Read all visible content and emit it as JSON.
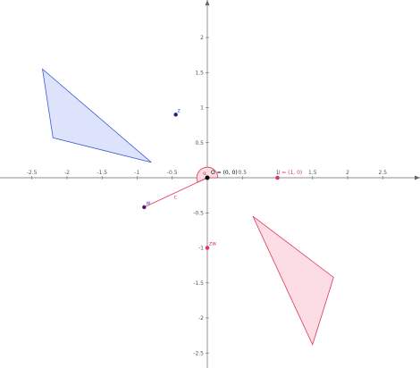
{
  "geometry_view": {
    "x_ticks": [
      "-2.5",
      "-2",
      "-1.5",
      "-1",
      "-0.5",
      "0",
      "0.5",
      "1",
      "1.5",
      "2",
      "2.5"
    ],
    "y_ticks": [
      "2",
      "1.5",
      "1",
      "0.5",
      "-0.5",
      "-1",
      "-1.5",
      "-2",
      "-2.5"
    ],
    "origin_label": "O = (0, 0)",
    "angle_label": "α",
    "point_I_label": "I = (1, 0)",
    "point_z_label": "z",
    "point_w_label": "w",
    "point_zw_label": "zw",
    "segment_label": "c",
    "colors": {
      "blue": "#3b5bd6",
      "blue_fill": "#dde3fb",
      "red": "#e0355f",
      "red_fill": "#fcdde4",
      "axis": "#666666",
      "origin": "#000000",
      "point_dark": "#1e1e6e"
    },
    "blue_triangle": [
      [
        -2.35,
        1.55
      ],
      [
        -2.2,
        0.57
      ],
      [
        -0.8,
        0.22
      ]
    ],
    "red_triangle": [
      [
        0.65,
        -0.55
      ],
      [
        1.8,
        -1.42
      ],
      [
        1.5,
        -2.38
      ]
    ],
    "point_I": [
      1,
      0
    ],
    "point_z": [
      -0.45,
      0.9
    ],
    "point_w": [
      -0.9,
      -0.42
    ],
    "point_zw": [
      0,
      -1
    ],
    "angle_arc_radius": 0.15
  }
}
